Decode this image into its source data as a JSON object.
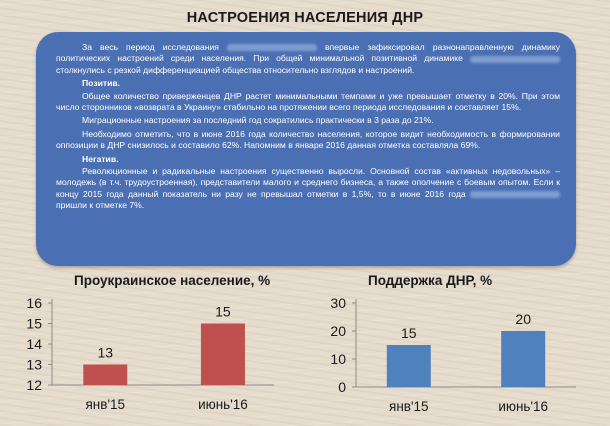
{
  "title": "НАСТРОЕНИЯ НАСЕЛЕНИЯ ДНР",
  "summary": {
    "p1_a": "За весь период исследования",
    "p1_b": "впервые зафиксировал разнонаправленную динамику политических настроений среди населения. При общей минимальной позитивной динамике",
    "p1_c": "столкнулись с резкой дифференциацией общества относительно взглядов и настроений.",
    "positive_heading": "Позитив.",
    "positive_p1": "Общее количество приверженцев ДНР растет минимальными темпами и уже превышает отметку в 20%. При этом число сторонников «возврата в Украину» стабильно на протяжении всего периода исследования и составляет 15%.",
    "positive_p2": "Миграционные настроения за последний год сократились практически в 3 раза до 21%.",
    "positive_p3": "Необходимо отметить, что в июне 2016 года количество населения, которое видит необходимость в формировании оппозиции в ДНР снизилось и составило 62%. Напомним в январе 2016 данная отметка составляла 69%.",
    "negative_heading": "Негатив.",
    "negative_p1": "Революционные и радикальные настроения существенно выросли. Основной состав «активных недовольных» – молодежь (в т.ч. трудоустроенная), представители малого и среднего бизнеса, а также ополчение с боевым опытом. Если к концу 2015 года данный показатель ни разу не превышал отметки в 1,5%, то в июне 2016 года",
    "negative_p1_end": "пришли к отметке 7%."
  },
  "chart_data": [
    {
      "type": "bar",
      "title": "Проукраинское население, %",
      "categories": [
        "янв'15",
        "июнь'16"
      ],
      "values": [
        13,
        15
      ],
      "value_labels": [
        "13",
        "15"
      ],
      "ylim": [
        12,
        16
      ],
      "yticks": [
        "12",
        "13",
        "14",
        "15",
        "16"
      ],
      "color": "#c0504d",
      "grid": false
    },
    {
      "type": "bar",
      "title": "Поддержка ДНР, %",
      "categories": [
        "янв'15",
        "июнь'16"
      ],
      "values": [
        15,
        20
      ],
      "value_labels": [
        "15",
        "20"
      ],
      "ylim": [
        0,
        30
      ],
      "yticks": [
        "0",
        "10",
        "20",
        "30"
      ],
      "color": "#4f81bd",
      "grid": false
    }
  ]
}
